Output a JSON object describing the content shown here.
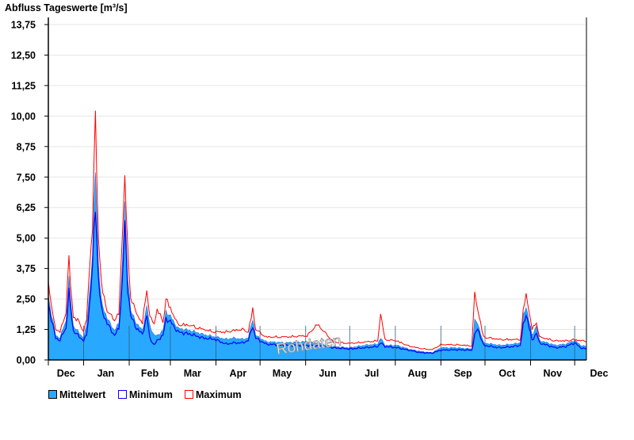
{
  "chart_data": {
    "type": "area",
    "title": "Abfluss Tageswerte [m³/s]",
    "watermark": "Rohdaten",
    "xlabel": "",
    "ylabel": "Abfluss Tageswerte [m³/s]",
    "ylim": [
      0,
      13.75
    ],
    "y_ticks": [
      "0,00",
      "1,25",
      "2,50",
      "3,75",
      "5,00",
      "6,25",
      "7,50",
      "8,75",
      "10,00",
      "11,25",
      "12,50",
      "13,75"
    ],
    "x_range_days": [
      0,
      366
    ],
    "month_ticks": [
      {
        "label": "Dec",
        "day": 0,
        "center": 12
      },
      {
        "label": "Jan",
        "day": 24,
        "center": 39
      },
      {
        "label": "Feb",
        "day": 55,
        "center": 69
      },
      {
        "label": "Mar",
        "day": 83,
        "center": 98
      },
      {
        "label": "Apr",
        "day": 114,
        "center": 129
      },
      {
        "label": "May",
        "day": 144,
        "center": 159
      },
      {
        "label": "Jun",
        "day": 175,
        "center": 190
      },
      {
        "label": "Jul",
        "day": 205,
        "center": 220
      },
      {
        "label": "Aug",
        "day": 236,
        "center": 251
      },
      {
        "label": "Sep",
        "day": 267,
        "center": 282
      },
      {
        "label": "Oct",
        "day": 297,
        "center": 312
      },
      {
        "label": "Nov",
        "day": 328,
        "center": 343
      },
      {
        "label": "Dec",
        "day": 358,
        "center": 373
      }
    ],
    "grid": true,
    "legend_position": "bottom-left",
    "series": [
      {
        "name": "Mittelwert",
        "color": "#29a8ff",
        "style": "fill"
      },
      {
        "name": "Minimum",
        "color": "#0000ff",
        "style": "line"
      },
      {
        "name": "Maximum",
        "color": "#ff0000",
        "style": "line"
      }
    ],
    "points_day_mean_min_max": [
      [
        0,
        2.6,
        2.3,
        3.2
      ],
      [
        2,
        1.9,
        1.7,
        2.1
      ],
      [
        5,
        1.0,
        0.9,
        1.2
      ],
      [
        8,
        0.9,
        0.8,
        1.1
      ],
      [
        10,
        1.3,
        1.1,
        1.5
      ],
      [
        12,
        1.6,
        1.3,
        1.9
      ],
      [
        14,
        3.3,
        2.8,
        4.0
      ],
      [
        15,
        2.5,
        2.2,
        3.0
      ],
      [
        17,
        1.4,
        1.2,
        1.7
      ],
      [
        21,
        1.1,
        0.95,
        1.5
      ],
      [
        24,
        0.9,
        0.8,
        1.1
      ],
      [
        26,
        1.4,
        1.0,
        1.6
      ],
      [
        28,
        2.8,
        2.2,
        3.6
      ],
      [
        30,
        4.25,
        3.8,
        5.2
      ],
      [
        32,
        8.0,
        6.4,
        9.6
      ],
      [
        34,
        4.0,
        3.4,
        5.0
      ],
      [
        36,
        2.4,
        2.1,
        3.0
      ],
      [
        40,
        1.7,
        1.5,
        1.9
      ],
      [
        45,
        1.2,
        1.0,
        1.6
      ],
      [
        48,
        1.5,
        1.3,
        1.8
      ],
      [
        50,
        3.5,
        2.9,
        4.5
      ],
      [
        52,
        6.3,
        5.5,
        7.2
      ],
      [
        54,
        3.5,
        3.0,
        4.3
      ],
      [
        56,
        2.0,
        1.8,
        2.5
      ],
      [
        60,
        1.5,
        1.3,
        1.8
      ],
      [
        64,
        1.2,
        1.05,
        1.45
      ],
      [
        67,
        2.2,
        1.8,
        2.8
      ],
      [
        69,
        1.4,
        0.9,
        1.7
      ],
      [
        72,
        1.0,
        0.6,
        1.4
      ],
      [
        74,
        1.0,
        0.8,
        2.0
      ],
      [
        78,
        1.2,
        1.0,
        1.5
      ],
      [
        80,
        2.0,
        1.7,
        2.4
      ],
      [
        84,
        1.7,
        1.5,
        1.9
      ],
      [
        88,
        1.3,
        1.15,
        1.4
      ],
      [
        97,
        1.2,
        1.05,
        1.35
      ],
      [
        105,
        1.05,
        0.9,
        1.2
      ],
      [
        113,
        0.95,
        0.85,
        1.1
      ],
      [
        121,
        0.85,
        0.65,
        1.1
      ],
      [
        126,
        0.9,
        0.7,
        1.15
      ],
      [
        132,
        0.85,
        0.7,
        1.2
      ],
      [
        136,
        0.9,
        0.8,
        1.1
      ],
      [
        139,
        1.7,
        1.4,
        2.0
      ],
      [
        141,
        1.0,
        0.9,
        1.2
      ],
      [
        148,
        0.75,
        0.65,
        0.9
      ],
      [
        161,
        0.7,
        0.6,
        0.9
      ],
      [
        176,
        0.75,
        0.6,
        0.95
      ],
      [
        183,
        0.7,
        0.6,
        1.4
      ],
      [
        194,
        0.55,
        0.5,
        0.7
      ],
      [
        205,
        0.5,
        0.45,
        0.65
      ],
      [
        215,
        0.6,
        0.5,
        0.7
      ],
      [
        224,
        0.65,
        0.55,
        0.75
      ],
      [
        226,
        0.9,
        0.7,
        1.8
      ],
      [
        229,
        0.6,
        0.55,
        0.8
      ],
      [
        237,
        0.6,
        0.5,
        0.75
      ],
      [
        245,
        0.45,
        0.4,
        0.55
      ],
      [
        253,
        0.35,
        0.3,
        0.45
      ],
      [
        261,
        0.3,
        0.28,
        0.4
      ],
      [
        267,
        0.5,
        0.4,
        0.6
      ],
      [
        277,
        0.5,
        0.42,
        0.6
      ],
      [
        288,
        0.45,
        0.4,
        0.55
      ],
      [
        290,
        1.6,
        1.0,
        2.6
      ],
      [
        292,
        1.5,
        1.3,
        2.0
      ],
      [
        296,
        0.7,
        0.6,
        0.9
      ],
      [
        307,
        0.6,
        0.5,
        0.8
      ],
      [
        316,
        0.65,
        0.55,
        0.8
      ],
      [
        321,
        0.7,
        0.6,
        0.8
      ],
      [
        323,
        1.8,
        1.4,
        1.9
      ],
      [
        325,
        2.2,
        1.9,
        2.6
      ],
      [
        329,
        1.0,
        0.8,
        1.2
      ],
      [
        332,
        1.4,
        1.1,
        1.5
      ],
      [
        334,
        0.8,
        0.7,
        0.9
      ],
      [
        345,
        0.6,
        0.5,
        0.75
      ],
      [
        352,
        0.65,
        0.55,
        0.75
      ],
      [
        358,
        0.8,
        0.7,
        0.8
      ],
      [
        362,
        0.6,
        0.5,
        0.75
      ],
      [
        366,
        0.55,
        0.45,
        0.75
      ]
    ]
  }
}
